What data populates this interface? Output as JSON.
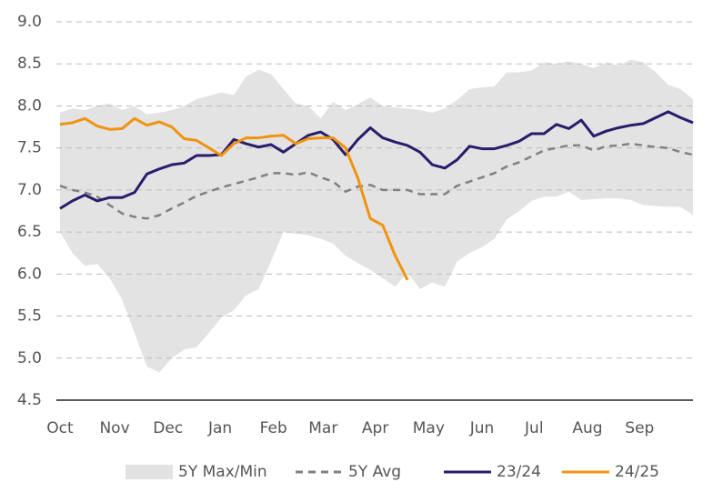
{
  "chart_data": {
    "type": "line",
    "x": [
      0,
      1,
      2,
      3,
      4,
      5,
      6,
      7,
      8,
      9,
      10,
      11,
      12,
      13,
      14,
      15,
      16,
      17,
      18,
      19,
      20,
      21,
      22,
      23,
      24,
      25,
      26,
      27,
      28,
      29,
      30,
      31,
      32,
      33,
      34,
      35,
      36,
      37,
      38,
      39,
      40,
      41,
      42,
      43,
      44,
      45,
      46,
      47,
      48,
      49,
      50,
      51
    ],
    "xlim": [
      0,
      51
    ],
    "xticks": [
      {
        "value": 0,
        "label": "Oct"
      },
      {
        "value": 4.4,
        "label": "Nov"
      },
      {
        "value": 8.7,
        "label": "Dec"
      },
      {
        "value": 12.9,
        "label": "Jan"
      },
      {
        "value": 17.2,
        "label": "Feb"
      },
      {
        "value": 21.2,
        "label": "Mar"
      },
      {
        "value": 25.4,
        "label": "Apr"
      },
      {
        "value": 29.7,
        "label": "May"
      },
      {
        "value": 34.0,
        "label": "Jun"
      },
      {
        "value": 38.2,
        "label": "Jul"
      },
      {
        "value": 42.5,
        "label": "Aug"
      },
      {
        "value": 46.7,
        "label": "Sep"
      }
    ],
    "ylim": [
      4.5,
      9.0
    ],
    "yticks": [
      4.5,
      {
        "value": 5,
        "label": "5.0"
      },
      5.5,
      {
        "value": 6,
        "label": "6.0"
      },
      6.5,
      {
        "value": 7,
        "label": "7.0"
      },
      7.5,
      {
        "value": 8,
        "label": "8.0"
      },
      8.5,
      {
        "value": 9,
        "label": "9.0"
      }
    ],
    "grid": true,
    "legend": "bottom",
    "series": [
      {
        "name": "5Y Max/Min",
        "color": "#e3e3e3",
        "style": "band",
        "high": [
          7.92,
          7.97,
          7.95,
          8.0,
          8.03,
          7.95,
          8.0,
          7.9,
          7.92,
          7.95,
          8.0,
          8.08,
          8.12,
          8.16,
          8.13,
          8.35,
          8.43,
          8.38,
          8.2,
          8.03,
          8.0,
          7.85,
          8.05,
          7.95,
          8.02,
          8.1,
          8.0,
          7.98,
          7.97,
          7.95,
          7.92,
          7.97,
          8.07,
          8.2,
          8.22,
          8.23,
          8.4,
          8.4,
          8.42,
          8.52,
          8.5,
          8.53,
          8.5,
          8.45,
          8.52,
          8.48,
          8.55,
          8.52,
          8.4,
          8.25,
          8.2,
          8.08
        ],
        "low": [
          6.5,
          6.25,
          6.1,
          6.12,
          5.95,
          5.7,
          5.3,
          4.9,
          4.83,
          5.0,
          5.1,
          5.13,
          5.3,
          5.48,
          5.57,
          5.75,
          5.82,
          6.15,
          6.5,
          6.48,
          6.46,
          6.42,
          6.36,
          6.22,
          6.13,
          6.05,
          5.95,
          5.85,
          6.02,
          5.82,
          5.9,
          5.85,
          6.15,
          6.25,
          6.32,
          6.42,
          6.65,
          6.75,
          6.87,
          6.92,
          6.92,
          6.98,
          6.88,
          6.89,
          6.9,
          6.9,
          6.88,
          6.82,
          6.81,
          6.8,
          6.8,
          6.7
        ]
      },
      {
        "name": "5Y Avg",
        "color": "#808080",
        "style": "dashed",
        "values": [
          7.05,
          7.0,
          6.97,
          6.92,
          6.82,
          6.72,
          6.68,
          6.66,
          6.7,
          6.78,
          6.85,
          6.93,
          6.98,
          7.03,
          7.07,
          7.11,
          7.15,
          7.2,
          7.2,
          7.18,
          7.21,
          7.15,
          7.1,
          6.98,
          7.04,
          7.06,
          7.0,
          7.0,
          7.0,
          6.95,
          6.95,
          6.95,
          7.05,
          7.1,
          7.15,
          7.2,
          7.28,
          7.33,
          7.4,
          7.47,
          7.5,
          7.53,
          7.53,
          7.47,
          7.52,
          7.53,
          7.55,
          7.53,
          7.51,
          7.5,
          7.45,
          7.42
        ]
      },
      {
        "name": "23/24",
        "color": "#2b1b6b",
        "style": "solid",
        "values": [
          6.78,
          6.87,
          6.94,
          6.87,
          6.91,
          6.91,
          6.97,
          7.19,
          7.25,
          7.3,
          7.32,
          7.41,
          7.41,
          7.42,
          7.6,
          7.55,
          7.51,
          7.54,
          7.45,
          7.55,
          7.65,
          7.69,
          7.6,
          7.42,
          7.6,
          7.74,
          7.62,
          7.57,
          7.53,
          7.45,
          7.3,
          7.26,
          7.36,
          7.52,
          7.49,
          7.49,
          7.53,
          7.58,
          7.67,
          7.67,
          7.78,
          7.73,
          7.83,
          7.64,
          7.7,
          7.74,
          7.77,
          7.79,
          7.86,
          7.93,
          7.86,
          7.8
        ]
      },
      {
        "name": "24/25",
        "color": "#f0930f",
        "style": "solid",
        "values": [
          7.78,
          7.8,
          7.85,
          7.76,
          7.72,
          7.73,
          7.85,
          7.77,
          7.81,
          7.75,
          7.61,
          7.59,
          7.5,
          7.41,
          7.55,
          7.62,
          7.62,
          7.64,
          7.65,
          7.55,
          7.61,
          7.62,
          7.62,
          7.5,
          7.14,
          6.66,
          6.58,
          6.22,
          5.93,
          null,
          null,
          null,
          null,
          null,
          null,
          null,
          null,
          null,
          null,
          null,
          null,
          null,
          null,
          null,
          null,
          null,
          null,
          null,
          null,
          null,
          null,
          null
        ]
      }
    ]
  }
}
